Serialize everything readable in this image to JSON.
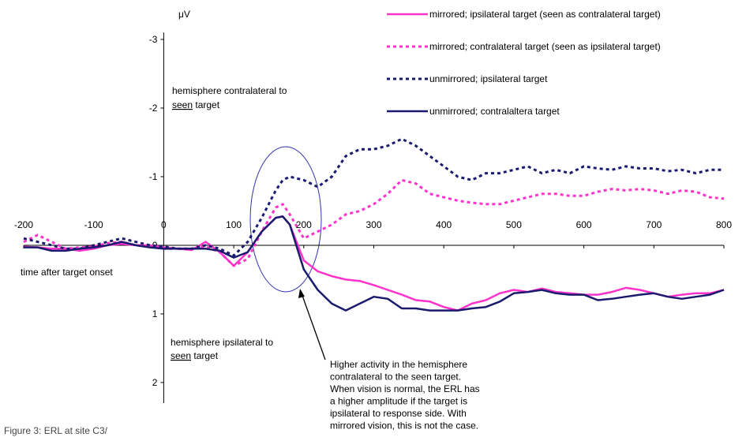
{
  "chart_data": {
    "type": "line",
    "y_axis_label": "μV",
    "y_inverted": true,
    "xlim": [
      -200,
      800
    ],
    "xticks": [
      -200,
      -100,
      0,
      100,
      200,
      300,
      400,
      500,
      600,
      700,
      800
    ],
    "ylim": [
      -3.1,
      2.3
    ],
    "yticks": [
      -3,
      -2,
      -1,
      0,
      1,
      2
    ],
    "x": [
      -200,
      -180,
      -160,
      -140,
      -120,
      -100,
      -80,
      -60,
      -40,
      -20,
      0,
      20,
      40,
      60,
      80,
      100,
      120,
      140,
      160,
      170,
      180,
      200,
      220,
      240,
      260,
      280,
      300,
      320,
      340,
      360,
      380,
      400,
      420,
      440,
      460,
      480,
      500,
      520,
      540,
      560,
      580,
      600,
      620,
      640,
      660,
      680,
      700,
      720,
      740,
      760,
      780,
      800
    ],
    "series": [
      {
        "name": "mirrored; ipsilateral target (seen as contralateral target)",
        "color": "#ff33cc",
        "dash": "solid",
        "values": [
          0.02,
          0.03,
          0.05,
          0.05,
          0.08,
          0.05,
          0.0,
          -0.02,
          0.0,
          0.0,
          0.03,
          0.05,
          0.07,
          -0.05,
          0.1,
          0.3,
          0.1,
          -0.2,
          -0.4,
          -0.42,
          -0.3,
          0.22,
          0.38,
          0.45,
          0.5,
          0.52,
          0.58,
          0.65,
          0.72,
          0.8,
          0.82,
          0.9,
          0.95,
          0.85,
          0.8,
          0.7,
          0.65,
          0.68,
          0.63,
          0.68,
          0.7,
          0.72,
          0.72,
          0.68,
          0.62,
          0.65,
          0.7,
          0.75,
          0.72,
          0.7,
          0.7,
          0.65
        ]
      },
      {
        "name": "mirrored; contralateral target (seen as ipsilateral target)",
        "color": "#ff33cc",
        "dash": "dotted",
        "values": [
          -0.05,
          -0.15,
          -0.05,
          0.05,
          0.03,
          0.02,
          -0.03,
          -0.05,
          0.0,
          0.02,
          0.05,
          0.05,
          0.05,
          0.02,
          0.1,
          0.3,
          0.2,
          -0.2,
          -0.55,
          -0.6,
          -0.45,
          -0.1,
          -0.2,
          -0.3,
          -0.45,
          -0.5,
          -0.6,
          -0.75,
          -0.95,
          -0.9,
          -0.75,
          -0.7,
          -0.65,
          -0.62,
          -0.6,
          -0.6,
          -0.65,
          -0.7,
          -0.75,
          -0.75,
          -0.72,
          -0.72,
          -0.78,
          -0.82,
          -0.8,
          -0.82,
          -0.8,
          -0.75,
          -0.8,
          -0.78,
          -0.7,
          -0.68
        ]
      },
      {
        "name": "unmirrored; ipsilateral target",
        "color": "#1a1a6e",
        "dash": "dotted",
        "values": [
          -0.1,
          -0.05,
          0.0,
          0.05,
          0.05,
          0.0,
          -0.05,
          -0.1,
          -0.05,
          0.0,
          0.02,
          0.05,
          0.05,
          0.0,
          0.05,
          0.15,
          -0.05,
          -0.4,
          -0.8,
          -0.95,
          -1.0,
          -0.95,
          -0.85,
          -1.0,
          -1.3,
          -1.4,
          -1.4,
          -1.45,
          -1.55,
          -1.45,
          -1.3,
          -1.15,
          -1.0,
          -0.95,
          -1.05,
          -1.05,
          -1.1,
          -1.15,
          -1.05,
          -1.1,
          -1.05,
          -1.15,
          -1.12,
          -1.1,
          -1.15,
          -1.12,
          -1.12,
          -1.08,
          -1.1,
          -1.05,
          -1.1,
          -1.1
        ]
      },
      {
        "name": "unmirrored; contralaltera target",
        "color": "#1a1a6e",
        "dash": "solid",
        "values": [
          0.03,
          0.03,
          0.08,
          0.08,
          0.05,
          0.03,
          0.0,
          -0.05,
          0.0,
          0.03,
          0.05,
          0.05,
          0.05,
          0.05,
          0.08,
          0.18,
          0.1,
          -0.2,
          -0.4,
          -0.42,
          -0.3,
          0.35,
          0.65,
          0.85,
          0.95,
          0.85,
          0.75,
          0.78,
          0.92,
          0.92,
          0.95,
          0.95,
          0.95,
          0.92,
          0.9,
          0.82,
          0.7,
          0.68,
          0.65,
          0.7,
          0.72,
          0.72,
          0.8,
          0.78,
          0.75,
          0.72,
          0.7,
          0.75,
          0.78,
          0.75,
          0.72,
          0.65
        ]
      }
    ],
    "annotations": {
      "contralateral": {
        "line1": "hemisphere contralateral to",
        "underlined": "seen",
        "rest": " target"
      },
      "ipsilateral": {
        "line1": "hemisphere ipsilateral to",
        "underlined": "seen",
        "rest": " target"
      },
      "x_axis_label": "time after target onset",
      "callout": [
        "Higher activity in the hemisphere",
        "contralateral to the seen target.",
        "When vision is normal, the ERL has",
        "a higher amplitude if the target is",
        "ipsilateral to response side. With",
        "mirrored vision, this is not the case."
      ]
    },
    "caption": "Figure 3: ERL at site C3/"
  }
}
